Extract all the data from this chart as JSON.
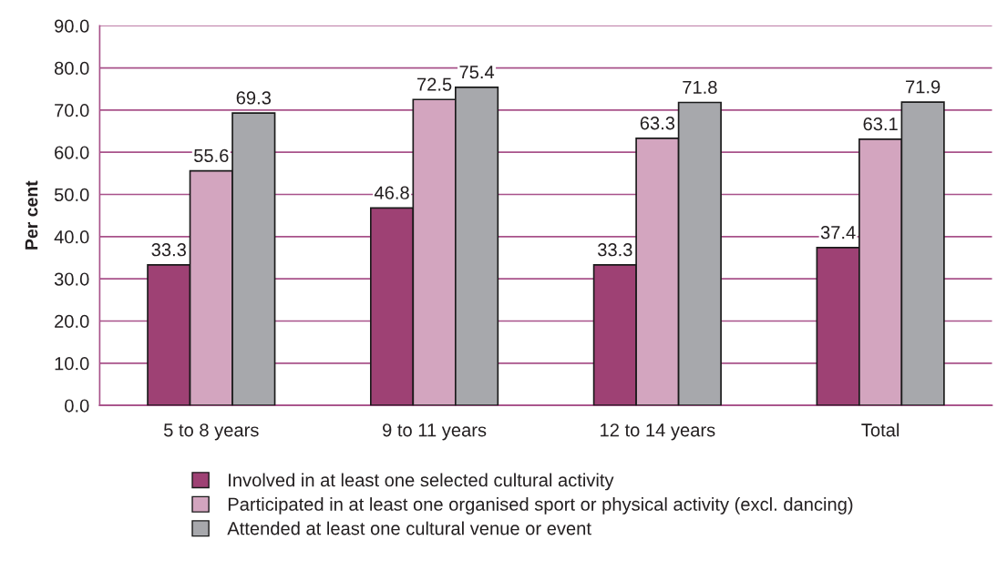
{
  "chart_data": {
    "type": "bar",
    "ylabel": "Per cent",
    "categories": [
      "5 to 8 years",
      "9 to 11 years",
      "12 to 14 years",
      "Total"
    ],
    "series": [
      {
        "name": "Involved in at least one selected cultural activity",
        "color": "#9e4174",
        "values": [
          33.3,
          46.8,
          33.3,
          37.4
        ]
      },
      {
        "name": "Participated in at least one organised sport or physical activity (excl. dancing)",
        "color": "#d3a5bf",
        "values": [
          55.6,
          72.5,
          63.3,
          63.1
        ]
      },
      {
        "name": "Attended at least one cultural venue or event",
        "color": "#a7a8ac",
        "values": [
          69.3,
          75.4,
          71.8,
          71.9
        ]
      }
    ],
    "ylim": [
      0,
      90
    ],
    "yticks": [
      {
        "value": 0,
        "label": "0.0"
      },
      {
        "value": 10,
        "label": "10.0"
      },
      {
        "value": 20,
        "label": "20.0"
      },
      {
        "value": 30,
        "label": "30.0"
      },
      {
        "value": 40,
        "label": "40.0"
      },
      {
        "value": 50,
        "label": "50.0"
      },
      {
        "value": 60,
        "label": "60.0"
      },
      {
        "value": 70,
        "label": "70.0"
      },
      {
        "value": 80,
        "label": "80.0"
      },
      {
        "value": 90,
        "label": "90.0"
      }
    ],
    "grid": "y",
    "legend": "bottom",
    "data_labels": true
  }
}
